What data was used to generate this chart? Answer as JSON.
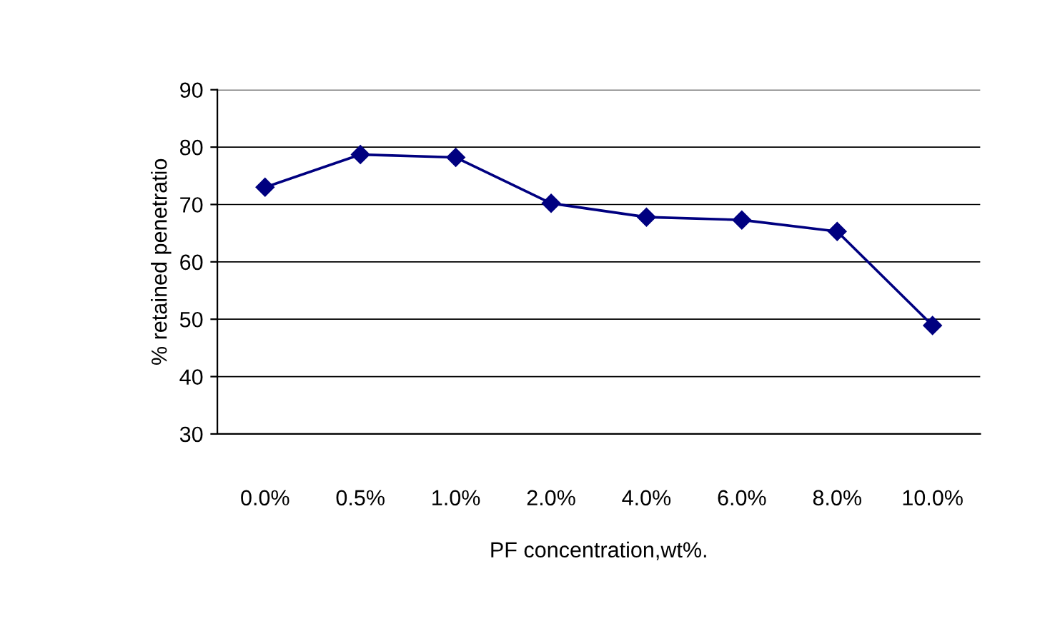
{
  "chart_data": {
    "type": "line",
    "xlabel": "PF concentration,wt%.",
    "ylabel": "% retained penetratio",
    "categories": [
      "0.0%",
      "0.5%",
      "1.0%",
      "2.0%",
      "4.0%",
      "6.0%",
      "8.0%",
      "10.0%"
    ],
    "series": [
      {
        "color": "#000080",
        "values": [
          73.0,
          78.7,
          78.2,
          70.2,
          67.8,
          67.3,
          65.3,
          48.9
        ]
      }
    ],
    "ylim": [
      30,
      90
    ],
    "yticks": [
      30,
      40,
      50,
      60,
      70,
      80,
      90
    ],
    "grid": "y",
    "marker": "diamond",
    "line_style": "solid",
    "legend": false
  }
}
